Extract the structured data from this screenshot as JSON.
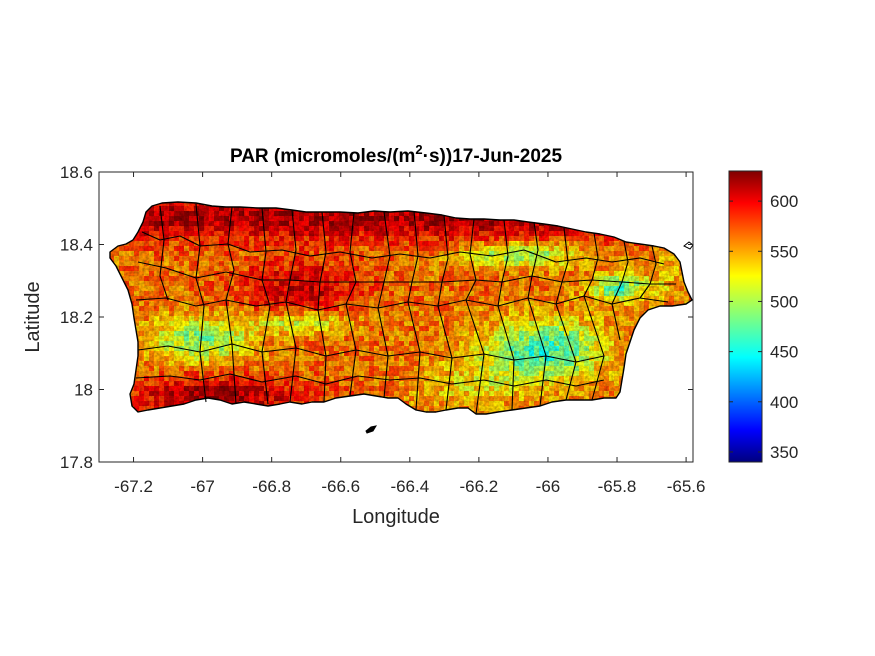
{
  "chart_data": {
    "type": "heatmap",
    "title": {
      "prefix": "PAR (micromoles/(m",
      "superscript": "2",
      "suffix": "·s))17-Jun-2025"
    },
    "xlabel": "Longitude",
    "ylabel": "Latitude",
    "xlim": [
      -67.3,
      -65.58
    ],
    "ylim": [
      17.8,
      18.6
    ],
    "xticks": [
      -67.2,
      -67,
      -66.8,
      -66.6,
      -66.4,
      -66.2,
      -66,
      -65.8,
      -65.6
    ],
    "xtick_labels": [
      "-67.2",
      "-67",
      "-66.8",
      "-66.6",
      "-66.4",
      "-66.2",
      "-66",
      "-65.8",
      "-65.6"
    ],
    "yticks": [
      17.8,
      18,
      18.2,
      18.4,
      18.6
    ],
    "ytick_labels": [
      "17.8",
      "18",
      "18.2",
      "18.4",
      "18.6"
    ],
    "colorbar": {
      "colormap": "jet",
      "range": [
        340,
        630
      ],
      "ticks": [
        350,
        400,
        450,
        500,
        550,
        600
      ],
      "tick_labels": [
        "350",
        "400",
        "450",
        "500",
        "550",
        "600"
      ]
    },
    "colors": {
      "low": "#00007f",
      "mid": "#7fff7f",
      "high": "#7f0000",
      "boundary": "#000000"
    }
  }
}
